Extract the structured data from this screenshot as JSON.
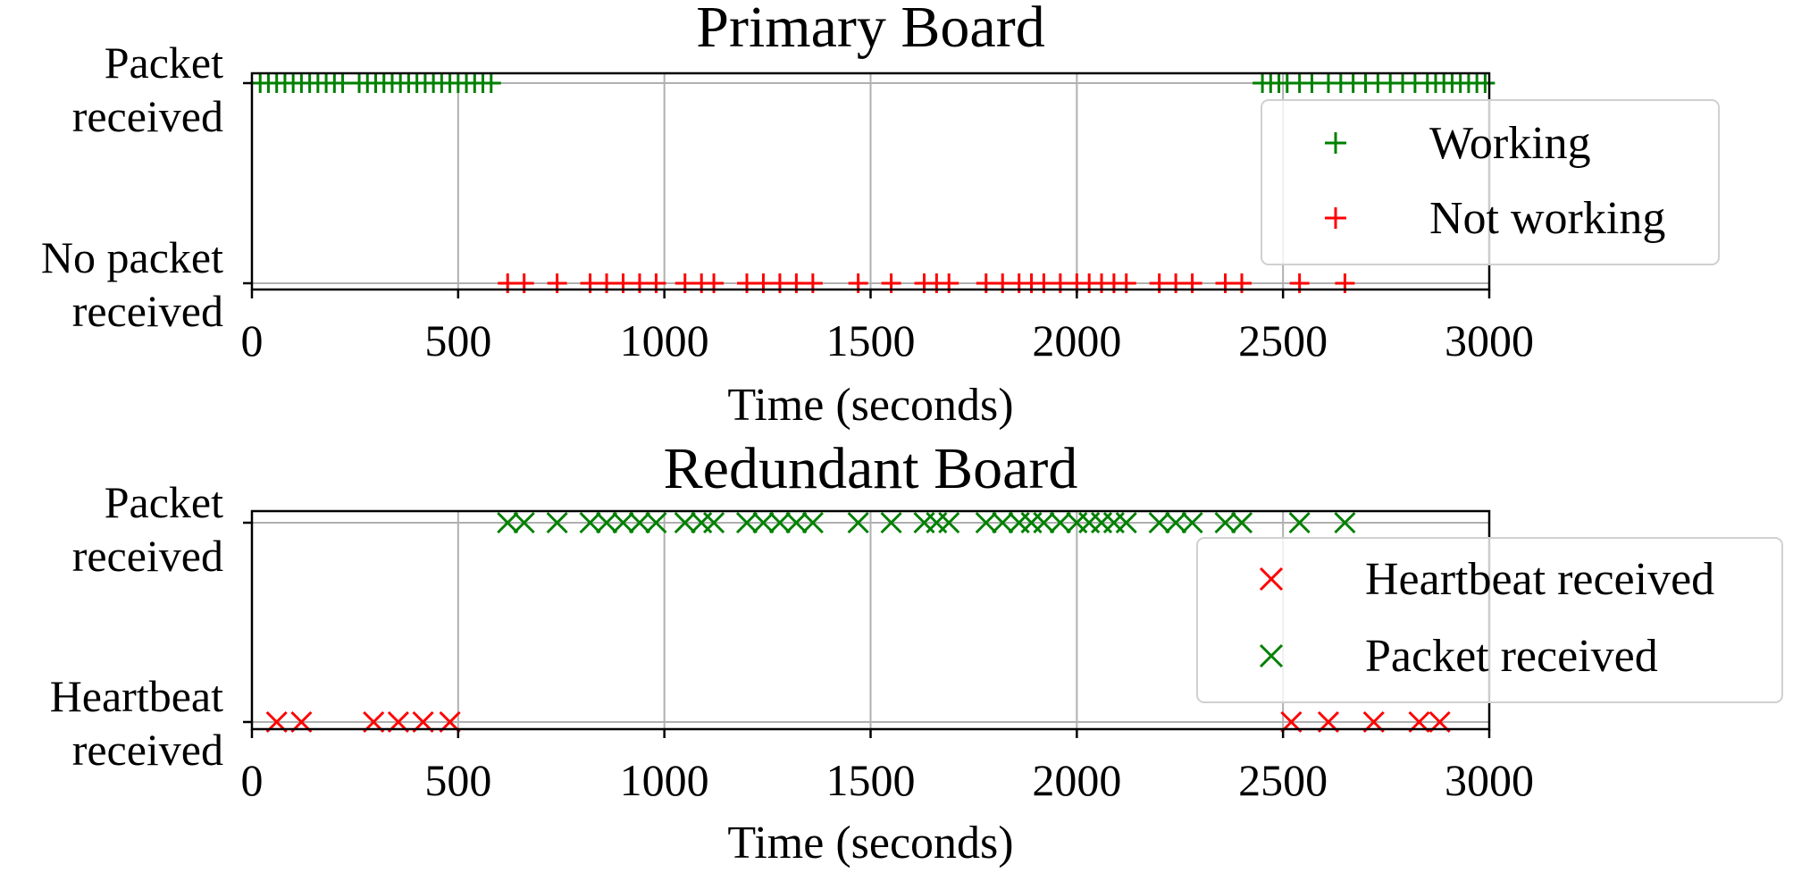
{
  "chart_data": [
    {
      "type": "scatter",
      "title": "Primary Board",
      "xlabel": "Time (seconds)",
      "xlim": [
        0,
        3000
      ],
      "xticks": [
        0,
        500,
        1000,
        1500,
        2000,
        2500,
        3000
      ],
      "ytick_labels": {
        "top": [
          "Packet",
          "received"
        ],
        "bottom": [
          "No packet",
          "received"
        ]
      },
      "grid": true,
      "legend_position": "upper right",
      "series": [
        {
          "name": "Working",
          "marker": "+",
          "color": "#008000",
          "level": "top",
          "x": [
            20,
            40,
            60,
            80,
            100,
            120,
            140,
            160,
            180,
            200,
            220,
            260,
            280,
            300,
            320,
            340,
            360,
            380,
            400,
            420,
            440,
            460,
            480,
            500,
            520,
            540,
            560,
            580,
            2450,
            2470,
            2490,
            2510,
            2540,
            2570,
            2610,
            2640,
            2670,
            2700,
            2730,
            2760,
            2790,
            2820,
            2850,
            2870,
            2890,
            2910,
            2930,
            2950,
            2970,
            2990
          ]
        },
        {
          "name": "Not working",
          "marker": "+",
          "color": "#ff0000",
          "level": "bottom",
          "x": [
            620,
            660,
            740,
            820,
            860,
            900,
            940,
            980,
            1050,
            1090,
            1120,
            1200,
            1240,
            1280,
            1320,
            1360,
            1470,
            1550,
            1630,
            1660,
            1690,
            1780,
            1820,
            1860,
            1890,
            1920,
            1960,
            2000,
            2030,
            2060,
            2090,
            2120,
            2200,
            2240,
            2280,
            2360,
            2400,
            2540,
            2650
          ]
        }
      ]
    },
    {
      "type": "scatter",
      "title": "Redundant Board",
      "xlabel": "Time (seconds)",
      "xlim": [
        0,
        3000
      ],
      "xticks": [
        0,
        500,
        1000,
        1500,
        2000,
        2500,
        3000
      ],
      "ytick_labels": {
        "top": [
          "Packet",
          "received"
        ],
        "bottom": [
          "Heartbeat",
          "received"
        ]
      },
      "grid": true,
      "legend_position": "center right",
      "series": [
        {
          "name": "Heartbeat received",
          "marker": "x",
          "color": "#ff0000",
          "level": "bottom",
          "x": [
            60,
            120,
            295,
            355,
            415,
            480,
            2520,
            2610,
            2720,
            2830,
            2880
          ]
        },
        {
          "name": "Packet received",
          "marker": "x",
          "color": "#008000",
          "level": "top",
          "x": [
            620,
            660,
            740,
            820,
            860,
            900,
            940,
            980,
            1050,
            1090,
            1120,
            1200,
            1240,
            1280,
            1320,
            1360,
            1470,
            1550,
            1630,
            1660,
            1690,
            1780,
            1820,
            1860,
            1890,
            1920,
            1960,
            2000,
            2030,
            2060,
            2090,
            2120,
            2200,
            2240,
            2280,
            2360,
            2400,
            2540,
            2650
          ]
        }
      ]
    }
  ]
}
